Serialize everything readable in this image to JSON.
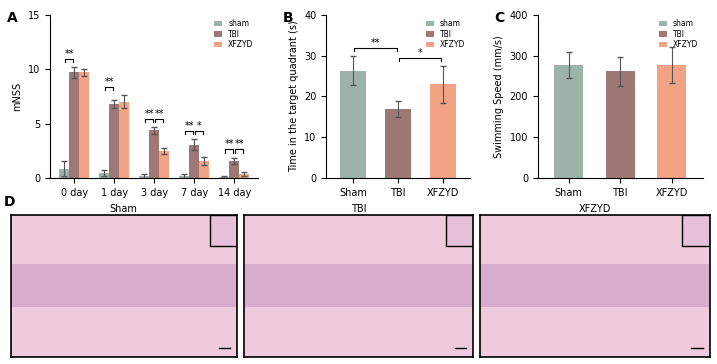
{
  "chart_data": [
    {
      "type": "bar",
      "annotations": [
        "A"
      ],
      "y_label": "mNSS",
      "categories": [
        "0 day",
        "1 day",
        "3 day",
        "7 day",
        "14 day"
      ],
      "series": [
        {
          "name": "sham",
          "color": "#9db3aa",
          "values": [
            0.9,
            0.5,
            0.2,
            0.2,
            0.1
          ],
          "errors": [
            0.7,
            0.3,
            0.2,
            0.2,
            0.1
          ]
        },
        {
          "name": "TBI",
          "color": "#9e7875",
          "values": [
            9.7,
            6.8,
            4.4,
            3.1,
            1.6
          ],
          "errors": [
            0.5,
            0.4,
            0.3,
            0.5,
            0.3
          ]
        },
        {
          "name": "XFZYD",
          "color": "#f2a285",
          "values": [
            9.7,
            7.0,
            2.5,
            1.6,
            0.4
          ],
          "errors": [
            0.3,
            0.6,
            0.3,
            0.4,
            0.2
          ]
        }
      ],
      "significance": [
        {
          "category": "0 day",
          "from": "sham",
          "to": "TBI",
          "label": "**"
        },
        {
          "category": "1 day",
          "from": "sham",
          "to": "TBI",
          "label": "**"
        },
        {
          "category": "3 day",
          "from": "sham",
          "to": "TBI",
          "label": "**"
        },
        {
          "category": "3 day",
          "from": "TBI",
          "to": "XFZYD",
          "label": "**"
        },
        {
          "category": "7 day",
          "from": "sham",
          "to": "TBI",
          "label": "**"
        },
        {
          "category": "7 day",
          "from": "TBI",
          "to": "XFZYD",
          "label": "*"
        },
        {
          "category": "14 day",
          "from": "sham",
          "to": "TBI",
          "label": "**"
        },
        {
          "category": "14 day",
          "from": "TBI",
          "to": "XFZYD",
          "label": "**"
        }
      ],
      "ylim": [
        0,
        15
      ],
      "yticks": [
        0,
        5,
        10,
        15
      ],
      "legend": "upper right"
    },
    {
      "type": "bar",
      "annotations": [
        "B"
      ],
      "y_label": "Time in the target quadrant (s)",
      "categories": [
        "Sham",
        "TBI",
        "XFZYD"
      ],
      "series": [
        {
          "name": "sham",
          "color": "#9db3aa",
          "values": [
            26.3,
            null,
            null
          ],
          "errors": [
            3.5,
            null,
            null
          ]
        },
        {
          "name": "TBI",
          "color": "#9e7875",
          "values": [
            null,
            17.0,
            null
          ],
          "errors": [
            null,
            2.0,
            null
          ]
        },
        {
          "name": "XFZYD",
          "color": "#f2a285",
          "values": [
            null,
            null,
            23.0
          ],
          "errors": [
            null,
            null,
            4.5
          ]
        }
      ],
      "significance": [
        {
          "from": "Sham",
          "to": "TBI",
          "label": "**"
        },
        {
          "from": "TBI",
          "to": "XFZYD",
          "label": "*"
        }
      ],
      "ylim": [
        0,
        40
      ],
      "yticks": [
        0,
        10,
        20,
        30,
        40
      ],
      "legend": "upper right"
    },
    {
      "type": "bar",
      "annotations": [
        "C"
      ],
      "y_label": "Swimming Speed (mm/s)",
      "categories": [
        "Sham",
        "TBI",
        "XFZYD"
      ],
      "series": [
        {
          "name": "sham",
          "color": "#9db3aa",
          "values": [
            277,
            null,
            null
          ],
          "errors": [
            32,
            null,
            null
          ]
        },
        {
          "name": "TBI",
          "color": "#9e7875",
          "values": [
            null,
            261,
            null
          ],
          "errors": [
            null,
            35,
            null
          ]
        },
        {
          "name": "XFZYD",
          "color": "#f2a285",
          "values": [
            null,
            null,
            277
          ],
          "errors": [
            null,
            null,
            45
          ]
        }
      ],
      "significance": [],
      "ylim": [
        0,
        400
      ],
      "yticks": [
        0,
        100,
        200,
        300,
        400
      ],
      "legend": "upper right"
    }
  ],
  "images": {
    "annotations": [
      "D"
    ],
    "panels": [
      "Sham",
      "TBI",
      "XFZYD"
    ]
  }
}
